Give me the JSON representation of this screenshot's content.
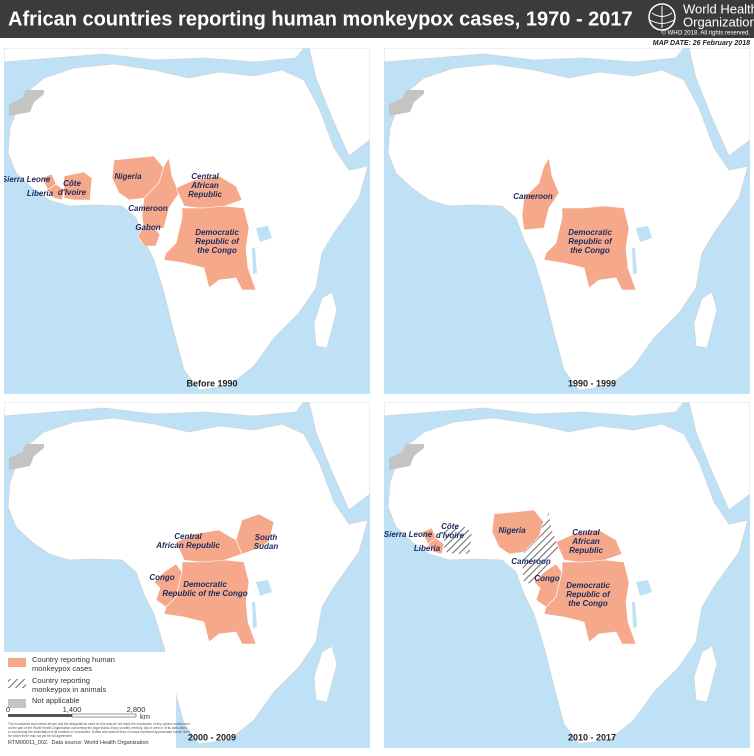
{
  "header": {
    "title": "African countries reporting human monkeypox cases, 1970 - 2017",
    "organization": [
      "World Health",
      "Organization"
    ],
    "copyright": "© WHO 2018. All rights reserved.",
    "map_date": "MAP DATE: 26 February 2018"
  },
  "panels": [
    {
      "period": "Before 1990",
      "labels": [
        [
          "Sierra Leone"
        ],
        [
          "Liberia"
        ],
        [
          "Côte",
          "d'Ivoire"
        ],
        [
          "Nigeria"
        ],
        [
          "Central",
          "African",
          "Republic"
        ],
        [
          "Cameroon"
        ],
        [
          "Gabon"
        ],
        [
          "Democratic",
          "Republic of",
          "the Congo"
        ]
      ]
    },
    {
      "period": "1990 - 1999",
      "labels": [
        [
          "Cameroon"
        ],
        [
          "Democratic",
          "Republic of",
          "the Congo"
        ]
      ]
    },
    {
      "period": "2000 - 2009",
      "labels": [
        [
          "Central",
          "African Republic"
        ],
        [
          "South",
          "Sudan"
        ],
        [
          "Congo"
        ],
        [
          "Democratic",
          "Republic of the Congo"
        ]
      ]
    },
    {
      "period": "2010 - 2017",
      "labels": [
        [
          "Sierra Leone"
        ],
        [
          "Liberia"
        ],
        [
          "Côte",
          "d'Ivoire"
        ],
        [
          "Nigeria"
        ],
        [
          "Cameroon"
        ],
        [
          "Congo"
        ],
        [
          "Central",
          "African",
          "Republic"
        ],
        [
          "Democratic",
          "Republic of",
          "the Congo"
        ]
      ]
    }
  ],
  "legend": {
    "items": [
      [
        "Country reporting human",
        "monkeypox cases"
      ],
      [
        "Country reporting",
        "monkeypox in animals"
      ],
      [
        "Not applicable"
      ]
    ],
    "scale": [
      "0",
      "1,400",
      "2,800"
    ],
    "unit": "km"
  },
  "footer": {
    "disclaimer": [
      "The boundaries and names shown and the designations used on this map do not imply the expression of any opinion whatsoever",
      "on the part of the World Health Organization concerning the legal status of any country, territory, city or area or of its authorities,",
      "or concerning the delimitation of its frontiers or boundaries. Dotted and dashed lines on maps represent approximate border lines",
      "for which there may not yet be full agreement."
    ],
    "code": "RTM00011_002.",
    "source": "Data source: World Health Organization"
  }
}
